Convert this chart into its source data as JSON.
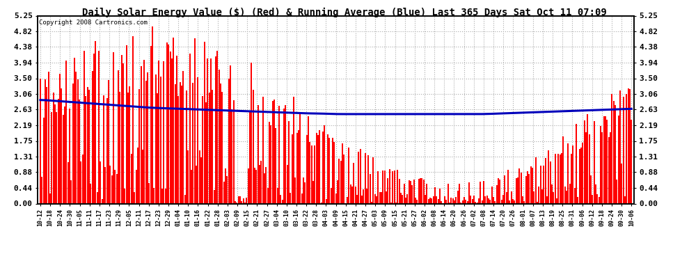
{
  "title": "Daily Solar Energy Value ($) (Red) & Running Average (Blue) Last 365 Days Sat Oct 11 07:09",
  "copyright": "Copyright 2008 Cartronics.com",
  "yticks": [
    0.0,
    0.44,
    0.88,
    1.31,
    1.75,
    2.19,
    2.63,
    3.06,
    3.5,
    3.94,
    4.38,
    4.82,
    5.25
  ],
  "ylim": [
    0.0,
    5.25
  ],
  "bar_color": "#ff0000",
  "avg_color": "#0000bb",
  "bg_color": "#ffffff",
  "plot_bg_color": "#ffffff",
  "grid_color": "#aaaaaa",
  "title_fontsize": 10,
  "xlabel_fontsize": 6,
  "ylabel_fontsize": 8,
  "xtick_labels": [
    "10-12",
    "10-18",
    "10-24",
    "10-30",
    "11-05",
    "11-11",
    "11-17",
    "11-23",
    "11-29",
    "12-05",
    "12-11",
    "12-17",
    "12-23",
    "12-29",
    "01-04",
    "01-10",
    "01-16",
    "01-22",
    "01-28",
    "02-03",
    "02-09",
    "02-15",
    "02-21",
    "02-27",
    "03-04",
    "03-10",
    "03-16",
    "03-22",
    "03-28",
    "04-03",
    "04-09",
    "04-15",
    "04-21",
    "04-27",
    "05-03",
    "05-09",
    "05-15",
    "05-21",
    "05-27",
    "06-02",
    "06-08",
    "06-14",
    "06-20",
    "06-26",
    "07-02",
    "07-08",
    "07-14",
    "07-20",
    "07-26",
    "08-01",
    "08-07",
    "08-13",
    "08-19",
    "08-25",
    "08-31",
    "09-06",
    "09-12",
    "09-18",
    "09-24",
    "09-30",
    "10-06"
  ],
  "n_days": 365,
  "avg_values": [
    2.9,
    2.88,
    2.86,
    2.84,
    2.82,
    2.8,
    2.78,
    2.76,
    2.74,
    2.72,
    2.7,
    2.68,
    2.67,
    2.66,
    2.65,
    2.64,
    2.63,
    2.62,
    2.61,
    2.6,
    2.59,
    2.58,
    2.57,
    2.56,
    2.55,
    2.54,
    2.53,
    2.52,
    2.52,
    2.51,
    2.5,
    2.5,
    2.5,
    2.5,
    2.5,
    2.5,
    2.5,
    2.5,
    2.5,
    2.5,
    2.5,
    2.5,
    2.5,
    2.5,
    2.5,
    2.5,
    2.51,
    2.52,
    2.53,
    2.54,
    2.55,
    2.56,
    2.57,
    2.58,
    2.59,
    2.6,
    2.61,
    2.62,
    2.63,
    2.64,
    2.65
  ]
}
